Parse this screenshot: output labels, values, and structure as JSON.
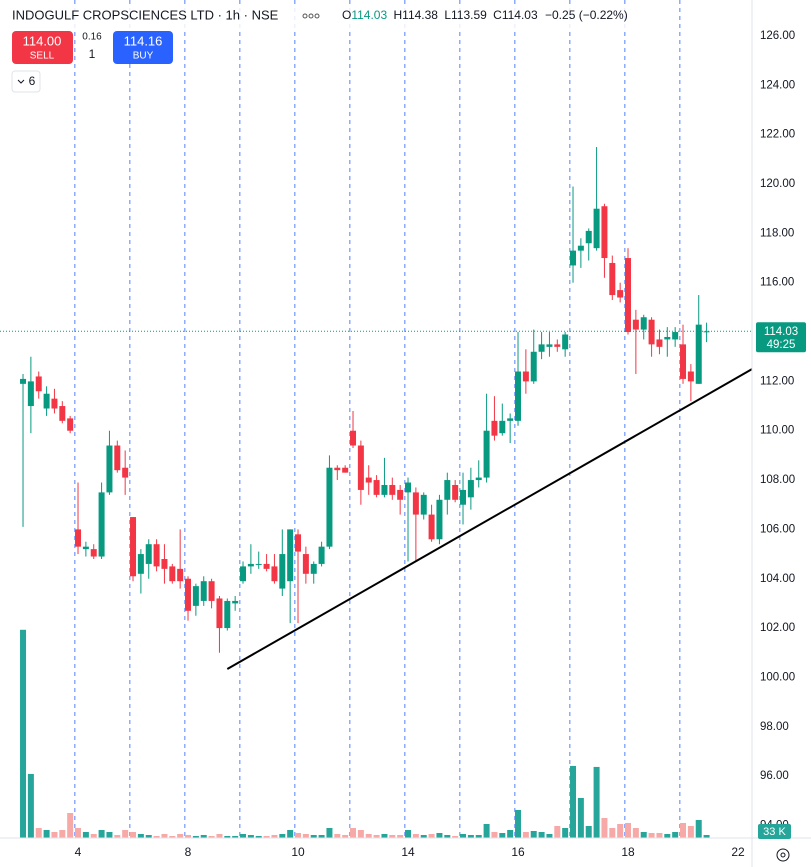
{
  "chart_data": {
    "type": "candlestick",
    "open": [
      111.9,
      111.0,
      112.2,
      110.9,
      111.3,
      111.0,
      110.5,
      106.0,
      105.2,
      105.2,
      104.9,
      107.5,
      109.4,
      108.5,
      106.5,
      104.2,
      104.6,
      105.4,
      104.8,
      104.5,
      104.4,
      104.0,
      102.9,
      103.1,
      103.9,
      103.2,
      102.0,
      103.0,
      103.9,
      104.5,
      104.6,
      104.6,
      104.5,
      103.6,
      103.9,
      105.8,
      105.0,
      104.2,
      104.6,
      105.3,
      108.5,
      108.5,
      110.0,
      109.4,
      108.1,
      108.0,
      107.4,
      107.8,
      107.6,
      107.5,
      107.5,
      106.6,
      106.6,
      105.6,
      107.2,
      107.8,
      107.0,
      107.3,
      108.0,
      108.1,
      110.4,
      109.9,
      110.4,
      110.4,
      112.4,
      112.0,
      113.2,
      113.4,
      113.5,
      113.3,
      116.7,
      117.3,
      117.6,
      117.4,
      119.1,
      116.8,
      115.7,
      117.0,
      114.5,
      114.1,
      114.5,
      113.7,
      113.7,
      113.7,
      113.5,
      112.4,
      111.9,
      114.03
    ],
    "high": [
      112.3,
      113.0,
      112.4,
      111.8,
      111.7,
      111.2,
      110.6,
      107.9,
      105.5,
      105.4,
      107.9,
      110.0,
      109.6,
      109.2,
      106.5,
      105.2,
      105.6,
      105.6,
      105.4,
      104.6,
      106.0,
      104.1,
      103.8,
      104.1,
      104.0,
      103.3,
      103.2,
      103.3,
      104.7,
      105.4,
      105.1,
      105.0,
      105.0,
      106.0,
      106.0,
      106.0,
      105.3,
      104.7,
      105.5,
      109.0,
      108.6,
      108.6,
      110.8,
      109.6,
      108.6,
      108.2,
      108.9,
      108.1,
      107.8,
      108.1,
      107.7,
      107.5,
      107.0,
      107.4,
      108.3,
      108.0,
      108.3,
      108.5,
      108.8,
      111.5,
      111.4,
      111.1,
      110.7,
      114.0,
      113.3,
      114.1,
      114.0,
      114.0,
      113.7,
      114.0,
      119.9,
      117.8,
      118.2,
      121.5,
      119.2,
      117.1,
      116.0,
      117.4,
      114.9,
      114.7,
      114.6,
      114.1,
      114.2,
      114.2,
      114.3,
      112.7,
      115.5,
      114.38
    ],
    "low": [
      106.1,
      109.9,
      111.3,
      110.6,
      110.7,
      110.3,
      109.9,
      105.0,
      104.9,
      104.8,
      104.8,
      107.4,
      108.3,
      107.4,
      103.9,
      103.4,
      104.0,
      104.3,
      103.8,
      103.8,
      103.6,
      102.3,
      102.5,
      102.9,
      102.8,
      101.0,
      101.9,
      102.7,
      103.8,
      104.2,
      104.4,
      104.3,
      103.8,
      103.3,
      102.2,
      102.2,
      103.8,
      103.8,
      104.5,
      105.2,
      108.0,
      108.3,
      109.3,
      107.0,
      107.4,
      107.3,
      107.3,
      107.2,
      106.6,
      104.7,
      104.7,
      106.4,
      105.5,
      105.4,
      106.6,
      107.1,
      106.2,
      106.8,
      107.7,
      107.9,
      109.6,
      109.8,
      109.5,
      110.2,
      111.5,
      111.9,
      112.9,
      113.0,
      113.2,
      113.0,
      116.0,
      116.6,
      116.9,
      117.3,
      116.2,
      115.3,
      115.2,
      113.9,
      112.3,
      113.7,
      113.0,
      113.1,
      113.0,
      113.4,
      111.9,
      111.2,
      111.9,
      113.59
    ],
    "close": [
      112.1,
      112.0,
      111.6,
      111.5,
      110.9,
      110.4,
      110.0,
      105.3,
      105.3,
      104.9,
      107.5,
      109.4,
      108.4,
      108.1,
      104.1,
      105.0,
      105.4,
      104.5,
      104.4,
      103.9,
      103.9,
      102.7,
      103.7,
      103.9,
      103.1,
      102.0,
      103.1,
      103.1,
      104.5,
      104.6,
      104.6,
      104.4,
      103.9,
      105.0,
      106.0,
      105.1,
      104.2,
      104.6,
      105.3,
      108.5,
      108.4,
      108.3,
      109.4,
      107.6,
      107.9,
      107.4,
      107.8,
      107.4,
      107.2,
      107.9,
      106.6,
      107.4,
      105.6,
      107.2,
      108.0,
      107.2,
      107.6,
      108.0,
      108.1,
      110.0,
      109.8,
      110.4,
      110.5,
      112.4,
      112.0,
      113.2,
      113.5,
      113.5,
      113.4,
      113.9,
      117.3,
      117.5,
      118.1,
      119.0,
      117.0,
      115.5,
      115.4,
      114.0,
      114.1,
      114.6,
      113.5,
      113.4,
      113.8,
      114.0,
      112.1,
      112.0,
      114.3,
      114.03
    ],
    "volume": [
      2288000,
      704000,
      110000,
      88000,
      66000,
      88000,
      275000,
      110000,
      66000,
      44000,
      88000,
      66000,
      33000,
      88000,
      66000,
      44000,
      33000,
      22000,
      44000,
      22000,
      44000,
      33000,
      22000,
      33000,
      22000,
      44000,
      22000,
      22000,
      44000,
      33000,
      22000,
      22000,
      33000,
      44000,
      88000,
      55000,
      44000,
      33000,
      33000,
      110000,
      44000,
      33000,
      110000,
      88000,
      44000,
      33000,
      44000,
      33000,
      33000,
      88000,
      44000,
      33000,
      44000,
      55000,
      33000,
      22000,
      44000,
      33000,
      33000,
      154000,
      66000,
      55000,
      88000,
      308000,
      66000,
      77000,
      66000,
      44000,
      132000,
      110000,
      792000,
      440000,
      132000,
      781000,
      220000,
      110000,
      154000,
      165000,
      110000,
      66000,
      55000,
      55000,
      44000,
      66000,
      165000,
      132000,
      198000,
      33000
    ],
    "last_volume_label": "33 K",
    "vlim": [
      0,
      4000000
    ],
    "xlim": [
      -2.93,
      92.78
    ],
    "xticks": [
      {
        "value": 7,
        "label": "4"
      },
      {
        "value": 21,
        "label": "8"
      },
      {
        "value": 35,
        "label": "10"
      },
      {
        "value": 49,
        "label": "14"
      },
      {
        "value": 63,
        "label": "16"
      },
      {
        "value": 77,
        "label": "18"
      },
      {
        "value": 91,
        "label": "22"
      }
    ],
    "ylim": [
      93.49,
      127.46
    ],
    "yticks": [
      {
        "value": 94,
        "label": "94.00"
      },
      {
        "value": 96,
        "label": "96.00"
      },
      {
        "value": 98,
        "label": "98.00"
      },
      {
        "value": 100,
        "label": "100.00"
      },
      {
        "value": 102,
        "label": "102.00"
      },
      {
        "value": 104,
        "label": "104.00"
      },
      {
        "value": 106,
        "label": "106.00"
      },
      {
        "value": 108,
        "label": "108.00"
      },
      {
        "value": 110,
        "label": "110.00"
      },
      {
        "value": 112,
        "label": "112.00"
      },
      {
        "value": 114,
        "label": "114.00"
      },
      {
        "value": 116,
        "label": "116.00"
      },
      {
        "value": 118,
        "label": "118.00"
      },
      {
        "value": 120,
        "label": "120.00"
      },
      {
        "value": 122,
        "label": "122.00"
      },
      {
        "value": 124,
        "label": "124.00"
      },
      {
        "value": 126,
        "label": "126.00"
      }
    ],
    "grid": false,
    "up_color": "#089981",
    "down_color": "#f23645",
    "volume_up_color": "#26a69a",
    "volume_down_color": "#f7a9a7",
    "trendline": {
      "x": [
        26.0,
        92.8
      ],
      "y": [
        100.34,
        112.5
      ],
      "color": "#000000"
    },
    "countdown": "49:25"
  },
  "ui": {
    "symbol": "INDOGULF CROPSCIENCES LTD · 1h · NSE",
    "ohlc_letters": [
      "O",
      "H",
      "L",
      "C"
    ],
    "change": "−0.25 (−0.22%)",
    "sell_price": "114.00",
    "sell": "SELL",
    "spread": "0.16",
    "quantity": "1",
    "buy_price": "114.16",
    "buy": "BUY",
    "indicators": "6"
  }
}
